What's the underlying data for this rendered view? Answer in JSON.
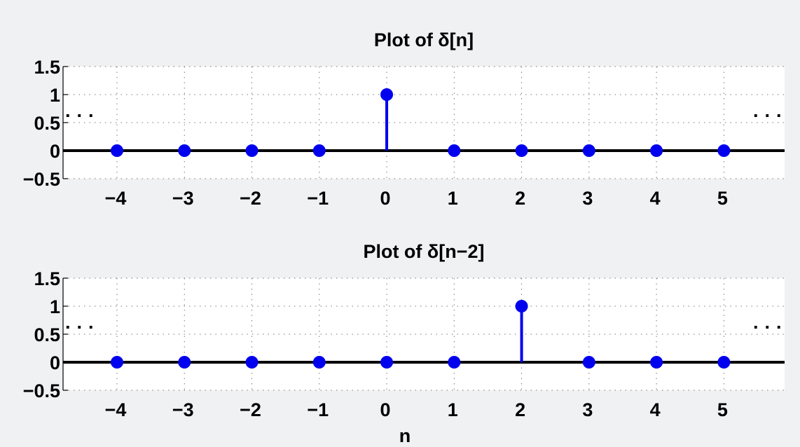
{
  "chart_data": [
    {
      "type": "stem",
      "title": "Plot of δ[n]",
      "xlabel": "",
      "ylabel": "",
      "x": [
        -4,
        -3,
        -2,
        -1,
        0,
        1,
        2,
        3,
        4,
        5
      ],
      "y": [
        0,
        0,
        0,
        0,
        1,
        0,
        0,
        0,
        0,
        0
      ],
      "xlim": [
        -4.8,
        5.9
      ],
      "ylim": [
        -0.5,
        1.5
      ],
      "x_ticks": [
        "−4",
        "−3",
        "−2",
        "−1",
        "0",
        "1",
        "2",
        "3",
        "4",
        "5"
      ],
      "y_ticks": [
        "1.5",
        "1",
        "0.5",
        "0",
        "−0.5"
      ],
      "y_tick_values": [
        1.5,
        1,
        0.5,
        0,
        -0.5
      ],
      "grid": true,
      "continuation_left": "· · ·",
      "continuation_right": "· · ·",
      "stem_color": "#0000ee",
      "axis_line_color": "#000000"
    },
    {
      "type": "stem",
      "title": "Plot of δ[n−2]",
      "xlabel": "n",
      "ylabel": "",
      "x": [
        -4,
        -3,
        -2,
        -1,
        0,
        1,
        2,
        3,
        4,
        5
      ],
      "y": [
        0,
        0,
        0,
        0,
        0,
        0,
        1,
        0,
        0,
        0
      ],
      "xlim": [
        -4.8,
        5.9
      ],
      "ylim": [
        -0.5,
        1.5
      ],
      "x_ticks": [
        "−4",
        "−3",
        "−2",
        "−1",
        "0",
        "1",
        "2",
        "3",
        "4",
        "5"
      ],
      "y_ticks": [
        "1.5",
        "1",
        "0.5",
        "0",
        "−0.5"
      ],
      "y_tick_values": [
        1.5,
        1,
        0.5,
        0,
        -0.5
      ],
      "grid": true,
      "continuation_left": "· · ·",
      "continuation_right": "· · ·",
      "stem_color": "#0000ee",
      "axis_line_color": "#000000"
    }
  ]
}
